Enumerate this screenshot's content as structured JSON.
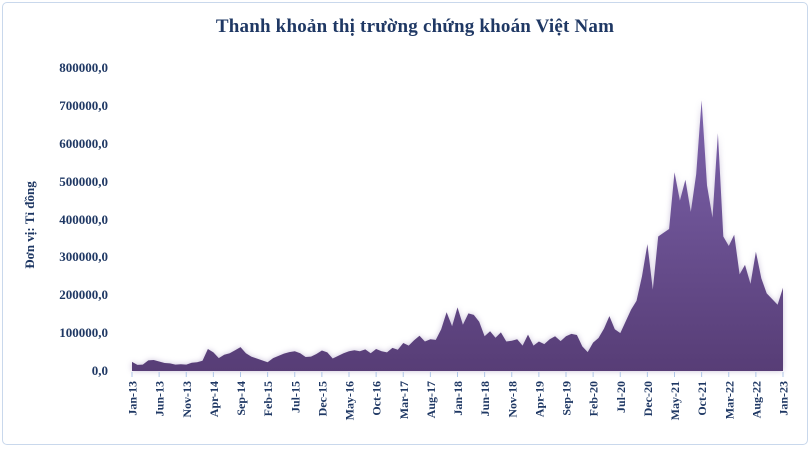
{
  "chart_data": {
    "type": "area",
    "title": "Thanh khoản thị trường chứng khoán Việt Nam",
    "xlabel": "",
    "ylabel": "Đơn vị: Tỉ đồng",
    "ylim": [
      0,
      800000
    ],
    "grid": false,
    "legend": false,
    "tick_every": 5,
    "y_ticks": [
      "800000,0",
      "700000,0",
      "600000,0",
      "500000,0",
      "400000,0",
      "300000,0",
      "200000,0",
      "100000,0",
      "0,0"
    ],
    "x_tick_labels": [
      "Jan-13",
      "Jun-13",
      "Nov-13",
      "Apr-14",
      "Sep-14",
      "Feb-15",
      "Jul-15",
      "Dec-15",
      "May-16",
      "Oct-16",
      "Mar-17",
      "Aug-17",
      "Jan-18",
      "Jun-18",
      "Nov-18",
      "Apr-19",
      "Sep-19",
      "Feb-20",
      "Jul-20",
      "Dec-20",
      "May-21",
      "Oct-21",
      "Mar-22",
      "Aug-22",
      "Jan-23"
    ],
    "months": [
      "Jan-13",
      "Feb-13",
      "Mar-13",
      "Apr-13",
      "May-13",
      "Jun-13",
      "Jul-13",
      "Aug-13",
      "Sep-13",
      "Oct-13",
      "Nov-13",
      "Dec-13",
      "Jan-14",
      "Feb-14",
      "Mar-14",
      "Apr-14",
      "May-14",
      "Jun-14",
      "Jul-14",
      "Aug-14",
      "Sep-14",
      "Oct-14",
      "Nov-14",
      "Dec-14",
      "Jan-15",
      "Feb-15",
      "Mar-15",
      "Apr-15",
      "May-15",
      "Jun-15",
      "Jul-15",
      "Aug-15",
      "Sep-15",
      "Oct-15",
      "Nov-15",
      "Dec-15",
      "Jan-16",
      "Feb-16",
      "Mar-16",
      "Apr-16",
      "May-16",
      "Jun-16",
      "Jul-16",
      "Aug-16",
      "Sep-16",
      "Oct-16",
      "Nov-16",
      "Dec-16",
      "Jan-17",
      "Feb-17",
      "Mar-17",
      "Apr-17",
      "May-17",
      "Jun-17",
      "Jul-17",
      "Aug-17",
      "Sep-17",
      "Oct-17",
      "Nov-17",
      "Dec-17",
      "Jan-18",
      "Feb-18",
      "Mar-18",
      "Apr-18",
      "May-18",
      "Jun-18",
      "Jul-18",
      "Aug-18",
      "Sep-18",
      "Oct-18",
      "Nov-18",
      "Dec-18",
      "Jan-19",
      "Feb-19",
      "Mar-19",
      "Apr-19",
      "May-19",
      "Jun-19",
      "Jul-19",
      "Aug-19",
      "Sep-19",
      "Oct-19",
      "Nov-19",
      "Dec-19",
      "Jan-20",
      "Feb-20",
      "Mar-20",
      "Apr-20",
      "May-20",
      "Jun-20",
      "Jul-20",
      "Aug-20",
      "Sep-20",
      "Oct-20",
      "Nov-20",
      "Dec-20",
      "Jan-21",
      "Feb-21",
      "Mar-21",
      "Apr-21",
      "May-21",
      "Jun-21",
      "Jul-21",
      "Aug-21",
      "Sep-21",
      "Oct-21",
      "Nov-21",
      "Dec-21",
      "Jan-22",
      "Feb-22",
      "Mar-22",
      "Apr-22",
      "May-22",
      "Jun-22",
      "Jul-22",
      "Aug-22",
      "Sep-22",
      "Oct-22",
      "Nov-22",
      "Dec-22",
      "Jan-23"
    ],
    "values": [
      24000,
      16000,
      17000,
      28000,
      29000,
      25000,
      21000,
      20000,
      17000,
      18000,
      17000,
      22000,
      23000,
      27000,
      58000,
      49000,
      34000,
      43000,
      47000,
      55000,
      63000,
      47000,
      38000,
      33000,
      28000,
      23000,
      34000,
      40000,
      46000,
      50000,
      52000,
      47000,
      37000,
      38000,
      45000,
      54000,
      49000,
      33000,
      40000,
      47000,
      52000,
      55000,
      52000,
      57000,
      47000,
      58000,
      52000,
      49000,
      61000,
      56000,
      74000,
      67000,
      81000,
      93000,
      78000,
      84000,
      82000,
      110000,
      155000,
      118000,
      168000,
      122000,
      152000,
      148000,
      130000,
      92000,
      105000,
      88000,
      102000,
      78000,
      80000,
      84000,
      67000,
      96000,
      67000,
      78000,
      71000,
      84000,
      92000,
      79000,
      92000,
      98000,
      95000,
      65000,
      50000,
      75000,
      87000,
      112000,
      145000,
      110000,
      100000,
      131000,
      162000,
      185000,
      250000,
      335000,
      215000,
      355000,
      365000,
      375000,
      525000,
      450000,
      505000,
      420000,
      520000,
      715000,
      490000,
      405000,
      628000,
      355000,
      330000,
      360000,
      255000,
      280000,
      230000,
      315000,
      245000,
      205000,
      190000,
      175000,
      220000
    ]
  },
  "colors": {
    "text_navy": "#1f3864",
    "area_top": "#7d63ac",
    "area_bottom": "#573d76",
    "axis_tick": "#aec6e8",
    "frame_border": "#c9d8ec",
    "background": "#ffffff"
  }
}
